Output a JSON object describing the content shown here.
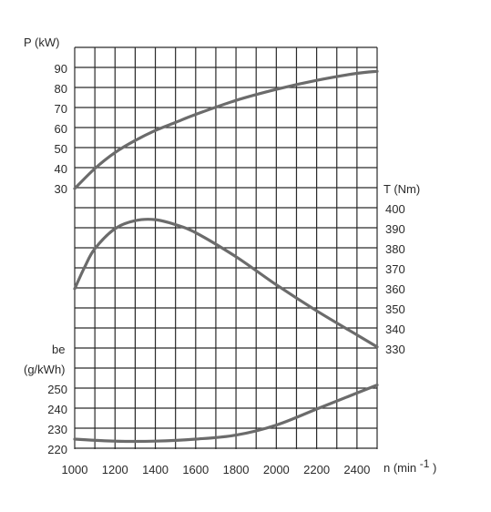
{
  "chart_data": {
    "type": "line",
    "x": {
      "label": "n (min",
      "superscript": "-1",
      "label_close": ")",
      "ticks": [
        1000,
        1200,
        1400,
        1600,
        1800,
        2000,
        2200,
        2400
      ],
      "range": [
        1000,
        2500
      ]
    },
    "axes": {
      "power": {
        "label": "P (kW)",
        "side": "left",
        "ticks": [
          30,
          40,
          50,
          60,
          70,
          80,
          90
        ],
        "range": [
          30,
          90
        ]
      },
      "torque": {
        "label": "T (Nm)",
        "side": "right",
        "ticks": [
          330,
          340,
          350,
          360,
          370,
          380,
          390,
          400
        ],
        "range": [
          330,
          400
        ]
      },
      "consumption": {
        "label": "be",
        "label_line2": "(g/kWh)",
        "side": "left",
        "ticks": [
          220,
          230,
          240,
          250
        ],
        "range": [
          220,
          250
        ]
      }
    },
    "series": [
      {
        "axis": "power",
        "x": [
          1000,
          1100,
          1200,
          1300,
          1400,
          1500,
          1600,
          1800,
          2000,
          2200,
          2400,
          2500
        ],
        "y": [
          30,
          40,
          48,
          54,
          59,
          63,
          67,
          74,
          79.5,
          84,
          87.5,
          88.5
        ]
      },
      {
        "axis": "torque",
        "x": [
          1000,
          1050,
          1100,
          1200,
          1300,
          1400,
          1500,
          1600,
          1800,
          2000,
          2200,
          2400,
          2500
        ],
        "y": [
          360,
          371,
          380,
          390,
          394,
          394.5,
          392,
          388,
          376,
          362,
          349,
          337,
          331
        ]
      },
      {
        "axis": "consumption",
        "x": [
          1000,
          1200,
          1400,
          1600,
          1800,
          2000,
          2200,
          2400,
          2500
        ],
        "y": [
          225,
          224,
          224,
          225,
          227,
          232,
          240,
          248,
          252
        ]
      }
    ],
    "grid": true
  }
}
